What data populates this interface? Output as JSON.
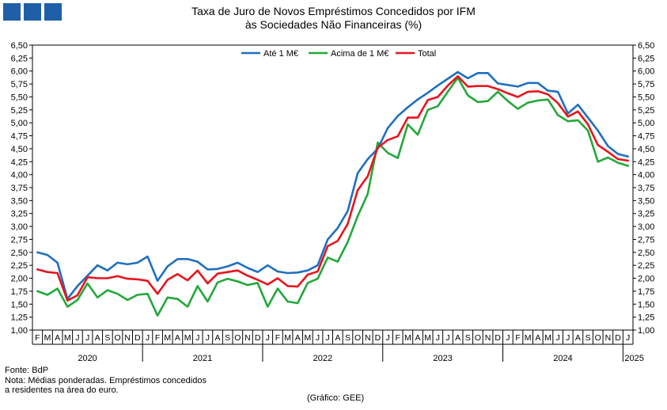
{
  "header": {
    "logo": "Banco de Portugal",
    "title_line1": "Taxa de Juro de Novos Empréstimos Concedidos por IFM",
    "title_line2": "às Sociedades Não Financeiras (%)"
  },
  "footer": {
    "source": "Fonte: BdP",
    "note_line1": "Nota: Médias ponderadas. Empréstimos concedidos",
    "note_line2": "a residentes na área do euro.",
    "credit": "(Gráfico: GEE)"
  },
  "colors": {
    "ate": "#1f6fbf",
    "acima": "#22a83a",
    "total": "#e8141c",
    "axis": "#000000",
    "grid": "#dddddd",
    "brand": "#1f5fa8"
  },
  "chart_data": {
    "type": "line",
    "title": "Taxa de Juro de Novos Empréstimos Concedidos por IFM às Sociedades Não Financeiras (%)",
    "ylim": [
      1.0,
      6.5
    ],
    "yticks": [
      "1,00",
      "1,25",
      "1,50",
      "1,75",
      "2,00",
      "2,25",
      "2,50",
      "2,75",
      "3,00",
      "3,25",
      "3,50",
      "3,75",
      "4,00",
      "4,25",
      "4,50",
      "4,75",
      "5,00",
      "5,25",
      "5,50",
      "5,75",
      "6,00",
      "6,25",
      "6,50"
    ],
    "ytick_values": [
      1.0,
      1.25,
      1.5,
      1.75,
      2.0,
      2.25,
      2.5,
      2.75,
      3.0,
      3.25,
      3.5,
      3.75,
      4.0,
      4.25,
      4.5,
      4.75,
      5.0,
      5.25,
      5.5,
      5.75,
      6.0,
      6.25,
      6.5
    ],
    "months": [
      "F",
      "M",
      "A",
      "M",
      "J",
      "J",
      "A",
      "S",
      "O",
      "N",
      "D",
      "J",
      "F",
      "M",
      "A",
      "M",
      "J",
      "J",
      "A",
      "S",
      "O",
      "N",
      "D",
      "J",
      "F",
      "M",
      "A",
      "M",
      "J",
      "J",
      "A",
      "S",
      "O",
      "N",
      "D",
      "J",
      "F",
      "M",
      "A",
      "M",
      "J",
      "J",
      "A",
      "S",
      "O",
      "N",
      "D",
      "J",
      "F",
      "M",
      "A",
      "M",
      "J",
      "J",
      "A",
      "S",
      "O",
      "N",
      "D",
      "J"
    ],
    "years": [
      {
        "label": "2020",
        "start": 0,
        "end": 10
      },
      {
        "label": "2021",
        "start": 11,
        "end": 22
      },
      {
        "label": "2022",
        "start": 23,
        "end": 34
      },
      {
        "label": "2023",
        "start": 35,
        "end": 46
      },
      {
        "label": "2024",
        "start": 47,
        "end": 58
      },
      {
        "label": "2025",
        "start": 59,
        "end": 59
      }
    ],
    "legend": {
      "placement": "top-center"
    },
    "grid": false,
    "series": [
      {
        "name": "Até 1 M€",
        "color": "#1f6fbf",
        "values": [
          2.5,
          2.45,
          2.3,
          1.6,
          1.85,
          2.05,
          2.25,
          2.15,
          2.3,
          2.27,
          2.3,
          2.42,
          1.95,
          2.23,
          2.37,
          2.37,
          2.32,
          2.17,
          2.18,
          2.23,
          2.3,
          2.2,
          2.12,
          2.25,
          2.13,
          2.1,
          2.11,
          2.15,
          2.25,
          2.75,
          2.97,
          3.3,
          4.03,
          4.3,
          4.5,
          4.9,
          5.13,
          5.3,
          5.45,
          5.58,
          5.72,
          5.85,
          5.98,
          5.86,
          5.96,
          5.96,
          5.76,
          5.73,
          5.7,
          5.77,
          5.77,
          5.62,
          5.6,
          5.18,
          5.35,
          5.1,
          4.85,
          4.55,
          4.4,
          4.35
        ]
      },
      {
        "name": "Acima de 1 M€",
        "color": "#22a83a",
        "values": [
          1.75,
          1.68,
          1.8,
          1.45,
          1.58,
          1.9,
          1.63,
          1.77,
          1.7,
          1.58,
          1.68,
          1.7,
          1.28,
          1.63,
          1.6,
          1.45,
          1.85,
          1.55,
          1.92,
          1.99,
          1.94,
          1.87,
          1.91,
          1.45,
          1.8,
          1.55,
          1.52,
          1.91,
          1.99,
          2.4,
          2.32,
          2.7,
          3.2,
          3.63,
          4.62,
          4.42,
          4.32,
          4.97,
          4.77,
          5.25,
          5.32,
          5.6,
          5.87,
          5.53,
          5.4,
          5.42,
          5.6,
          5.42,
          5.27,
          5.39,
          5.43,
          5.45,
          5.15,
          5.03,
          5.05,
          4.85,
          4.25,
          4.33,
          4.23,
          4.17
        ]
      },
      {
        "name": "Total",
        "color": "#e8141c",
        "values": [
          2.17,
          2.12,
          2.1,
          1.57,
          1.67,
          2.02,
          2.0,
          2.0,
          2.04,
          1.99,
          1.98,
          1.95,
          1.7,
          1.97,
          2.08,
          1.96,
          2.15,
          1.9,
          2.09,
          2.12,
          2.15,
          2.05,
          1.97,
          1.88,
          2.0,
          1.85,
          1.84,
          2.07,
          2.13,
          2.62,
          2.72,
          3.05,
          3.7,
          3.97,
          4.52,
          4.67,
          4.74,
          5.1,
          5.1,
          5.44,
          5.5,
          5.72,
          5.9,
          5.7,
          5.71,
          5.71,
          5.65,
          5.57,
          5.5,
          5.6,
          5.61,
          5.55,
          5.38,
          5.12,
          5.22,
          4.97,
          4.57,
          4.44,
          4.3,
          4.27
        ]
      }
    ]
  }
}
